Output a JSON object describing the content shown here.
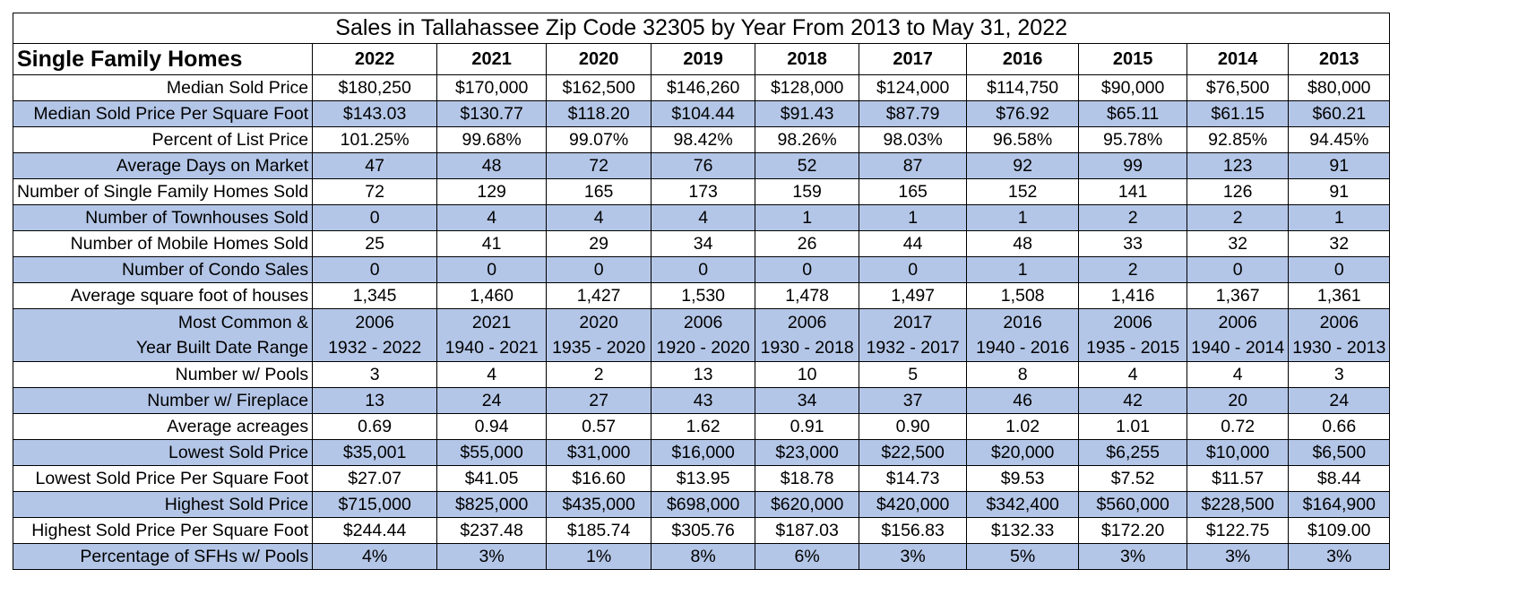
{
  "title": "Sales in Tallahassee Zip Code 32305 by Year From 2013 to May 31, 2022",
  "section_header": "Single Family Homes",
  "years": [
    "2022",
    "2021",
    "2020",
    "2019",
    "2018",
    "2017",
    "2016",
    "2015",
    "2014",
    "2013"
  ],
  "row_shading_color": "#b4c6e7",
  "rows": [
    {
      "label": "Median Sold Price",
      "values": [
        "$180,250",
        "$170,000",
        "$162,500",
        "$146,260",
        "$128,000",
        "$124,000",
        "$114,750",
        "$90,000",
        "$76,500",
        "$80,000"
      ]
    },
    {
      "label": "Median Sold Price Per Square Foot",
      "values": [
        "$143.03",
        "$130.77",
        "$118.20",
        "$104.44",
        "$91.43",
        "$87.79",
        "$76.92",
        "$65.11",
        "$61.15",
        "$60.21"
      ]
    },
    {
      "label": "Percent of List Price",
      "values": [
        "101.25%",
        "99.68%",
        "99.07%",
        "98.42%",
        "98.26%",
        "98.03%",
        "96.58%",
        "95.78%",
        "92.85%",
        "94.45%"
      ]
    },
    {
      "label": "Average Days on Market",
      "values": [
        "47",
        "48",
        "72",
        "76",
        "52",
        "87",
        "92",
        "99",
        "123",
        "91"
      ]
    },
    {
      "label": "Number of Single Family Homes Sold",
      "values": [
        "72",
        "129",
        "165",
        "173",
        "159",
        "165",
        "152",
        "141",
        "126",
        "91"
      ]
    },
    {
      "label": "Number of Townhouses Sold",
      "values": [
        "0",
        "4",
        "4",
        "4",
        "1",
        "1",
        "1",
        "2",
        "2",
        "1"
      ]
    },
    {
      "label": "Number of Mobile Homes Sold",
      "values": [
        "25",
        "41",
        "29",
        "34",
        "26",
        "44",
        "48",
        "33",
        "32",
        "32"
      ]
    },
    {
      "label": "Number of Condo Sales",
      "values": [
        "0",
        "0",
        "0",
        "0",
        "0",
        "0",
        "1",
        "2",
        "0",
        "0"
      ]
    },
    {
      "label": "Average square foot of houses",
      "values": [
        "1,345",
        "1,460",
        "1,427",
        "1,530",
        "1,478",
        "1,497",
        "1,508",
        "1,416",
        "1,367",
        "1,361"
      ]
    },
    {
      "label_line1": "Most Common &",
      "label_line2": "Year Built Date Range",
      "values_line1": [
        "2006",
        "2021",
        "2020",
        "2006",
        "2006",
        "2017",
        "2016",
        "2006",
        "2006",
        "2006"
      ],
      "values_line2": [
        "1932 - 2022",
        "1940 - 2021",
        "1935 - 2020",
        "1920 - 2020",
        "1930 - 2018",
        "1932 - 2017",
        "1940 - 2016",
        "1935 - 2015",
        "1940 - 2014",
        "1930 - 2013"
      ]
    },
    {
      "label": "Number w/ Pools",
      "values": [
        "3",
        "4",
        "2",
        "13",
        "10",
        "5",
        "8",
        "4",
        "4",
        "3"
      ]
    },
    {
      "label": "Number w/ Fireplace",
      "values": [
        "13",
        "24",
        "27",
        "43",
        "34",
        "37",
        "46",
        "42",
        "20",
        "24"
      ]
    },
    {
      "label": "Average acreages",
      "values": [
        "0.69",
        "0.94",
        "0.57",
        "1.62",
        "0.91",
        "0.90",
        "1.02",
        "1.01",
        "0.72",
        "0.66"
      ]
    },
    {
      "label": "Lowest Sold Price",
      "values": [
        "$35,001",
        "$55,000",
        "$31,000",
        "$16,000",
        "$23,000",
        "$22,500",
        "$20,000",
        "$6,255",
        "$10,000",
        "$6,500"
      ]
    },
    {
      "label": "Lowest Sold Price Per Square Foot",
      "values": [
        "$27.07",
        "$41.05",
        "$16.60",
        "$13.95",
        "$18.78",
        "$14.73",
        "$9.53",
        "$7.52",
        "$11.57",
        "$8.44"
      ]
    },
    {
      "label": "Highest Sold Price",
      "values": [
        "$715,000",
        "$825,000",
        "$435,000",
        "$698,000",
        "$620,000",
        "$420,000",
        "$342,400",
        "$560,000",
        "$228,500",
        "$164,900"
      ]
    },
    {
      "label": "Highest Sold Price Per Square Foot",
      "values": [
        "$244.44",
        "$237.48",
        "$185.74",
        "$305.76",
        "$187.03",
        "$156.83",
        "$132.33",
        "$172.20",
        "$122.75",
        "$109.00"
      ]
    },
    {
      "label": "Percentage of SFHs w/ Pools",
      "values": [
        "4%",
        "3%",
        "1%",
        "8%",
        "6%",
        "3%",
        "5%",
        "3%",
        "3%",
        "3%"
      ]
    }
  ]
}
